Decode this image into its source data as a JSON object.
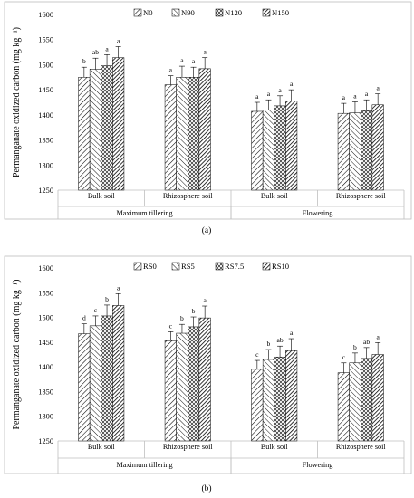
{
  "chart_data": [
    {
      "type": "bar",
      "panel_label": "(a)",
      "ylabel": "Permanganate oxidized carbon (mg kg⁻¹)",
      "ylim": [
        1250,
        1600
      ],
      "yticks": [
        1250,
        1300,
        1350,
        1400,
        1450,
        1500,
        1550,
        1600
      ],
      "grid": false,
      "legend_position": "top",
      "groups": [
        {
          "label": "Maximum tillering",
          "categories": [
            "Bulk soil",
            "Rhizosphere soil"
          ]
        },
        {
          "label": "Flowering",
          "categories": [
            "Bulk soil",
            "Rhizosphere soil"
          ]
        }
      ],
      "categories": [
        "Bulk soil",
        "Rhizosphere soil",
        "Bulk soil",
        "Rhizosphere soil"
      ],
      "series": [
        {
          "name": "N0",
          "values": [
            1475,
            1460,
            1407,
            1403
          ],
          "errors": [
            20,
            18,
            18,
            20
          ],
          "letters": [
            "b",
            "a",
            "a",
            "a"
          ]
        },
        {
          "name": "N90",
          "values": [
            1491,
            1475,
            1410,
            1404
          ],
          "errors": [
            22,
            22,
            20,
            22
          ],
          "letters": [
            "ab",
            "a",
            "a",
            "a"
          ]
        },
        {
          "name": "N120",
          "values": [
            1498,
            1475,
            1418,
            1408
          ],
          "errors": [
            22,
            20,
            20,
            22
          ],
          "letters": [
            "a",
            "a",
            "a",
            "a"
          ]
        },
        {
          "name": "N150",
          "values": [
            1514,
            1492,
            1428,
            1420
          ],
          "errors": [
            22,
            22,
            22,
            22
          ],
          "letters": [
            "a",
            "a",
            "a",
            "a"
          ]
        }
      ]
    },
    {
      "type": "bar",
      "panel_label": "(b)",
      "ylabel": "Permanganate oxidized carbon (mg kg⁻¹)",
      "ylim": [
        1250,
        1600
      ],
      "yticks": [
        1250,
        1300,
        1350,
        1400,
        1450,
        1500,
        1550,
        1600
      ],
      "grid": false,
      "legend_position": "top",
      "groups": [
        {
          "label": "Maximum tillering",
          "categories": [
            "Bulk soil",
            "Rhizosphere soil"
          ]
        },
        {
          "label": "Flowering",
          "categories": [
            "Bulk soil",
            "Rhizosphere soil"
          ]
        }
      ],
      "categories": [
        "Bulk soil",
        "Rhizosphere soil",
        "Bulk soil",
        "Rhizosphere soil"
      ],
      "series": [
        {
          "name": "RS0",
          "values": [
            1467,
            1453,
            1395,
            1388
          ],
          "errors": [
            20,
            18,
            18,
            20
          ],
          "letters": [
            "d",
            "c",
            "c",
            "c"
          ]
        },
        {
          "name": "RS5",
          "values": [
            1483,
            1468,
            1415,
            1408
          ],
          "errors": [
            20,
            18,
            20,
            20
          ],
          "letters": [
            "c",
            "b",
            "b",
            "b"
          ]
        },
        {
          "name": "RS7.5",
          "values": [
            1503,
            1481,
            1420,
            1417
          ],
          "errors": [
            22,
            20,
            22,
            22
          ],
          "letters": [
            "b",
            "b",
            "ab",
            "ab"
          ]
        },
        {
          "name": "RS10",
          "values": [
            1524,
            1499,
            1433,
            1425
          ],
          "errors": [
            24,
            24,
            24,
            24
          ],
          "letters": [
            "a",
            "a",
            "a",
            "a"
          ]
        }
      ]
    }
  ]
}
